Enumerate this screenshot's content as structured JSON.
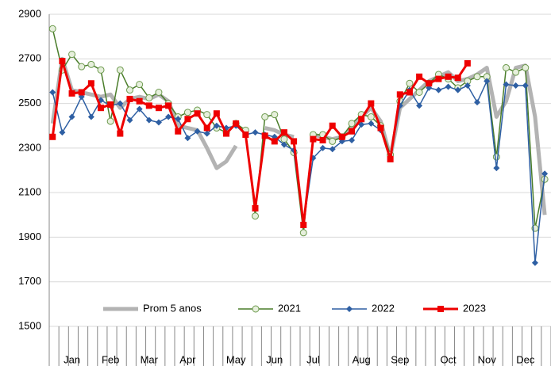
{
  "chart_data": {
    "type": "line",
    "categories": [
      null,
      null,
      "Jan",
      null,
      null,
      null,
      "Feb",
      null,
      null,
      null,
      "Mar",
      null,
      null,
      null,
      "Apr",
      null,
      null,
      null,
      null,
      "May",
      null,
      null,
      null,
      "Jun",
      null,
      null,
      null,
      "Jul",
      null,
      null,
      null,
      null,
      "Aug",
      null,
      null,
      null,
      "Sep",
      null,
      null,
      null,
      null,
      "Oct",
      null,
      null,
      null,
      "Nov",
      null,
      null,
      null,
      "Dec",
      null,
      null
    ],
    "series": [
      {
        "name": "Prom 5 anos",
        "color": "#b3b3b3",
        "marker": "none",
        "values": [
          2410,
          2700,
          2560,
          2550,
          2540,
          2530,
          2540,
          2480,
          2520,
          2530,
          2520,
          2540,
          2510,
          2400,
          2390,
          2380,
          2300,
          2210,
          2240,
          2310,
          null,
          null,
          2390,
          2380,
          2360,
          2350,
          null,
          2360,
          2350,
          2340,
          2350,
          2390,
          2440,
          2480,
          2420,
          2260,
          2480,
          2520,
          2560,
          2600,
          2620,
          2640,
          2600,
          2610,
          2630,
          2660,
          2440,
          2510,
          2660,
          2670,
          2440,
          2000
        ]
      },
      {
        "name": "2021",
        "color": "#4a7d2a",
        "marker": "circle",
        "values": [
          2835,
          2650,
          2720,
          2665,
          2675,
          2650,
          2420,
          2650,
          2560,
          2585,
          2525,
          2550,
          2500,
          2440,
          2460,
          2470,
          2450,
          2390,
          2370,
          2410,
          2380,
          1995,
          2440,
          2450,
          2340,
          2280,
          1920,
          2360,
          2360,
          2330,
          2350,
          2410,
          2450,
          2440,
          2400,
          2270,
          2510,
          2590,
          2550,
          2590,
          2630,
          2610,
          2570,
          2600,
          2620,
          2620,
          2260,
          2660,
          2640,
          2660,
          1940,
          2160
        ]
      },
      {
        "name": "2022",
        "color": "#2e5fa3",
        "marker": "diamond",
        "values": [
          2550,
          2370,
          2440,
          2530,
          2440,
          2515,
          2490,
          2500,
          2425,
          2475,
          2425,
          2415,
          2440,
          2430,
          2345,
          2375,
          2365,
          2400,
          2390,
          2400,
          2360,
          2370,
          2360,
          2350,
          2315,
          2290,
          1960,
          2255,
          2300,
          2295,
          2330,
          2335,
          2405,
          2410,
          2380,
          2260,
          2490,
          2560,
          2490,
          2570,
          2560,
          2575,
          2560,
          2580,
          2505,
          2600,
          2210,
          2585,
          2580,
          2580,
          1785,
          2185
        ]
      },
      {
        "name": "2023",
        "color": "#ee0000",
        "marker": "square",
        "values": [
          2350,
          2690,
          2545,
          2550,
          2590,
          2480,
          2495,
          2365,
          2520,
          2510,
          2490,
          2480,
          2490,
          2375,
          2430,
          2455,
          2390,
          2455,
          2365,
          2410,
          2360,
          2030,
          2355,
          2330,
          2370,
          2330,
          1955,
          2340,
          2335,
          2400,
          2350,
          2375,
          2430,
          2500,
          2390,
          2250,
          2540,
          2550,
          2620,
          2590,
          2610,
          2620,
          2615,
          2680,
          null,
          null,
          null,
          null,
          null,
          null,
          null,
          null
        ]
      }
    ],
    "ylim": [
      1500,
      2900
    ],
    "yticks": [
      1500,
      1700,
      1900,
      2100,
      2300,
      2500,
      2700,
      2900
    ],
    "grid": true
  }
}
